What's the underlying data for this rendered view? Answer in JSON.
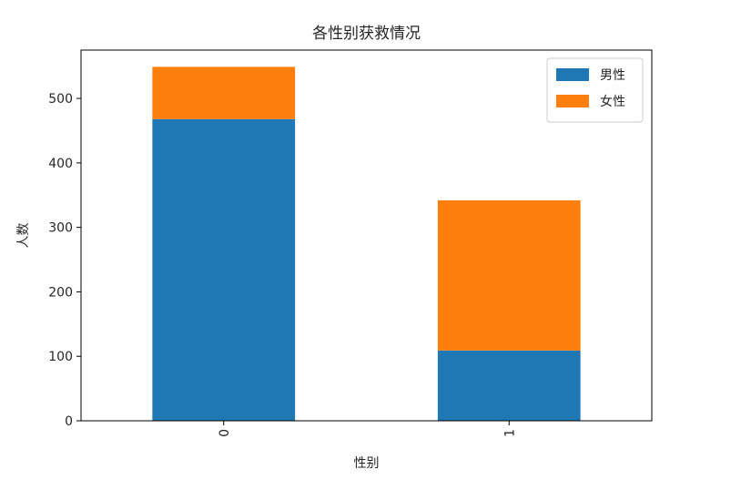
{
  "chart_data": {
    "type": "bar",
    "stacked": true,
    "title": "各性别获救情况",
    "xlabel": "性别",
    "ylabel": "人数",
    "categories": [
      "0",
      "1"
    ],
    "ylim": [
      0,
      575
    ],
    "yticks": [
      0,
      100,
      200,
      300,
      400,
      500
    ],
    "ytick_labels": [
      "0",
      "100",
      "200",
      "300",
      "400",
      "500"
    ],
    "series": [
      {
        "name": "男性",
        "values": [
          468,
          109
        ],
        "color": "#1f77b4"
      },
      {
        "name": "女性",
        "values": [
          81,
          233
        ],
        "color": "#ff7f0e"
      }
    ],
    "legend_position": "top-right",
    "grid": false
  }
}
